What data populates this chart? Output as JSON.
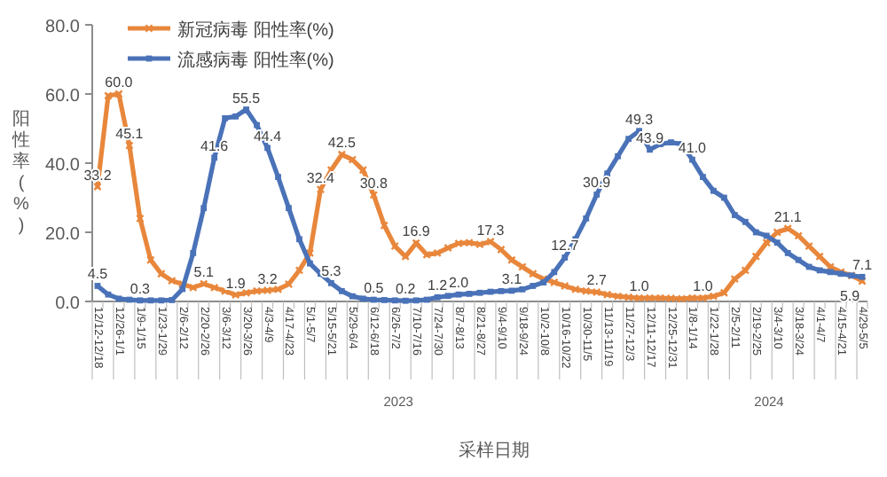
{
  "chart_data": {
    "type": "line",
    "ylabel": "阳性率(%)",
    "xlabel": "采样日期",
    "categories": [
      "12/12-12/18",
      null,
      "12/26-1/1",
      null,
      "1/9-1/15",
      null,
      "1/23-1/29",
      null,
      "2/6-2/12",
      null,
      "2/20-2/26",
      null,
      "3/6-3/12",
      null,
      "3/20-3/26",
      null,
      "4/3-4/9",
      null,
      "4/17-4/23",
      null,
      "5/1-5/7",
      null,
      "5/15-5/21",
      null,
      "5/29-6/4",
      null,
      "6/12-6/18",
      null,
      "6/26-7/2",
      null,
      "7/10-7/16",
      null,
      "7/24-7/30",
      null,
      "8/7-8/13",
      null,
      "8/21-8/27",
      null,
      "9/4-9/10",
      null,
      "9/18-9/24",
      null,
      "10/2-10/8",
      null,
      "10/16-10/22",
      null,
      "10/30-11/5",
      null,
      "11/13-11/19",
      null,
      "11/27-12/3",
      null,
      "12/11-12/17",
      null,
      "12/25-12/31",
      null,
      "1/8-1/14",
      null,
      "1/22-1/28",
      null,
      "2/5-2/11",
      null,
      "2/19-2/25",
      null,
      "3/4-3/10",
      null,
      "3/18-3/24",
      null,
      "4/1-4/7",
      null,
      "4/15-4/21",
      null,
      "4/29-5/5"
    ],
    "series": [
      {
        "name": "新冠病毒 阳性率(%)",
        "color": "#e8873c",
        "marker": "cross",
        "values": [
          33.2,
          59.5,
          60.0,
          45.1,
          24.0,
          12.0,
          8.0,
          6.0,
          5.0,
          4.0,
          5.1,
          4.0,
          3.0,
          1.9,
          2.5,
          3.0,
          3.2,
          3.5,
          5.0,
          9.0,
          14.0,
          32.4,
          38.0,
          42.5,
          41.0,
          38.0,
          30.8,
          22.0,
          16.0,
          13.0,
          16.9,
          13.5,
          14.0,
          15.5,
          16.8,
          17.0,
          16.5,
          17.3,
          15.0,
          12.0,
          10.0,
          8.0,
          6.5,
          5.5,
          4.5,
          3.5,
          3.0,
          2.7,
          2.0,
          1.5,
          1.2,
          1.0,
          1.0,
          1.0,
          0.9,
          0.8,
          1.0,
          1.0,
          1.5,
          2.5,
          6.5,
          9.0,
          13.0,
          17.0,
          20.0,
          21.1,
          19.0,
          16.0,
          13.0,
          10.0,
          8.5,
          7.5,
          5.9
        ],
        "value_labels": [
          "33.2",
          null,
          "60.0",
          "45.1",
          null,
          null,
          null,
          null,
          null,
          null,
          "5.1",
          null,
          null,
          "1.9",
          null,
          null,
          "3.2",
          null,
          null,
          null,
          null,
          "32.4",
          null,
          "42.5",
          null,
          null,
          "30.8",
          null,
          null,
          null,
          "16.9",
          null,
          null,
          null,
          null,
          null,
          null,
          "17.3",
          null,
          null,
          null,
          null,
          null,
          null,
          null,
          null,
          null,
          "2.7",
          null,
          null,
          null,
          "1.0",
          null,
          null,
          null,
          null,
          null,
          "1.0",
          null,
          null,
          null,
          null,
          null,
          null,
          null,
          "21.1",
          null,
          null,
          null,
          null,
          null,
          null,
          "5.9"
        ]
      },
      {
        "name": "流感病毒 阳性率(%)",
        "color": "#4a72b8",
        "marker": "square",
        "values": [
          4.5,
          2.0,
          0.8,
          0.5,
          0.3,
          0.3,
          0.3,
          0.4,
          3.6,
          14.0,
          27.0,
          41.6,
          53.0,
          53.5,
          55.5,
          51.0,
          44.4,
          36.0,
          27.0,
          18.0,
          11.0,
          8.0,
          5.3,
          3.0,
          1.5,
          0.8,
          0.5,
          0.4,
          0.3,
          0.2,
          0.3,
          0.5,
          1.2,
          1.6,
          2.0,
          2.2,
          2.5,
          2.8,
          3.0,
          3.1,
          3.5,
          4.5,
          5.5,
          8.5,
          12.7,
          18.0,
          24.0,
          30.9,
          37.0,
          42.0,
          47.0,
          49.3,
          43.9,
          45.5,
          46.0,
          45.5,
          41.0,
          36.0,
          32.0,
          30.0,
          25.0,
          23.0,
          20.0,
          19.0,
          17.0,
          14.0,
          12.0,
          10.0,
          9.0,
          8.5,
          8.0,
          7.5,
          7.1
        ],
        "value_labels": [
          "4.5",
          null,
          null,
          null,
          "0.3",
          null,
          null,
          null,
          null,
          null,
          null,
          "41.6",
          null,
          null,
          "55.5",
          null,
          "44.4",
          null,
          null,
          null,
          null,
          null,
          "5.3",
          null,
          null,
          null,
          "0.5",
          null,
          null,
          "0.2",
          null,
          null,
          "1.2",
          null,
          "2.0",
          null,
          null,
          null,
          null,
          "3.1",
          null,
          null,
          null,
          null,
          "12.7",
          null,
          null,
          "30.9",
          null,
          null,
          null,
          "49.3",
          "43.9",
          null,
          null,
          null,
          "41.0",
          null,
          null,
          null,
          null,
          null,
          null,
          null,
          null,
          null,
          null,
          null,
          null,
          null,
          null,
          null,
          "7.1"
        ]
      }
    ],
    "ylim": [
      0,
      80
    ],
    "yticks": [
      {
        "value": 0,
        "label": "0.0"
      },
      {
        "value": 20,
        "label": "20.0"
      },
      {
        "value": 40,
        "label": "40.0"
      },
      {
        "value": 60,
        "label": "60.0"
      },
      {
        "value": 80,
        "label": "80.0"
      }
    ],
    "legend": "top left",
    "annotations": [
      "2023",
      "2024"
    ]
  }
}
